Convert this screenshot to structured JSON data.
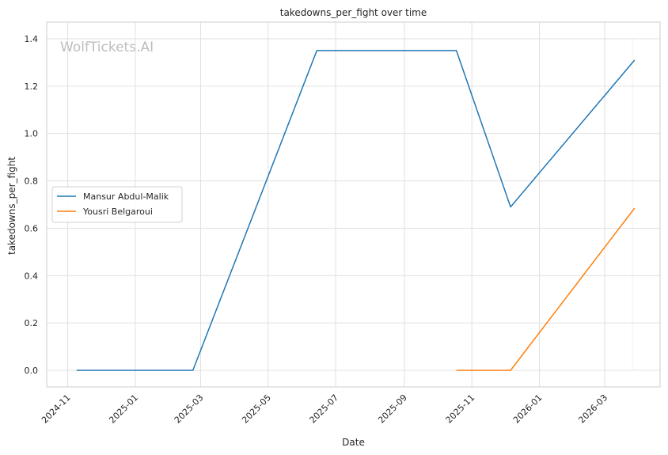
{
  "chart_data": {
    "type": "line",
    "title": "takedowns_per_fight over time",
    "xlabel": "Date",
    "ylabel": "takedowns_per_fight",
    "watermark": "WolfTickets.AI",
    "xlim": [
      "2024-10-13",
      "2026-04-20"
    ],
    "ylim": [
      -0.07,
      1.47
    ],
    "x_ticks": [
      "2024-11-01",
      "2025-01-01",
      "2025-03-01",
      "2025-05-01",
      "2025-07-01",
      "2025-09-01",
      "2025-11-01",
      "2026-01-01",
      "2026-03-01"
    ],
    "x_tick_labels": [
      "2024-11",
      "2025-01",
      "2025-03",
      "2025-05",
      "2025-07",
      "2025-09",
      "2025-11",
      "2026-01",
      "2026-03"
    ],
    "y_ticks": [
      0.0,
      0.2,
      0.4,
      0.6,
      0.8,
      1.0,
      1.2,
      1.4
    ],
    "y_tick_labels": [
      "0.0",
      "0.2",
      "0.4",
      "0.6",
      "0.8",
      "1.0",
      "1.2",
      "1.4"
    ],
    "grid": true,
    "legend_position": "center-left",
    "series": [
      {
        "name": "Mansur Abdul-Malik",
        "color": "#1f77b4",
        "points": [
          {
            "x": "2024-11-09",
            "y": 0.0
          },
          {
            "x": "2025-02-22",
            "y": 0.0
          },
          {
            "x": "2025-06-14",
            "y": 1.35
          },
          {
            "x": "2025-10-18",
            "y": 1.35
          },
          {
            "x": "2025-12-06",
            "y": 0.69
          },
          {
            "x": "2026-03-28",
            "y": 1.31
          }
        ]
      },
      {
        "name": "Yousri Belgaroui",
        "color": "#ff7f0e",
        "points": [
          {
            "x": "2025-10-18",
            "y": 0.0
          },
          {
            "x": "2025-12-06",
            "y": 0.0
          },
          {
            "x": "2026-03-28",
            "y": 0.685
          }
        ]
      }
    ]
  }
}
